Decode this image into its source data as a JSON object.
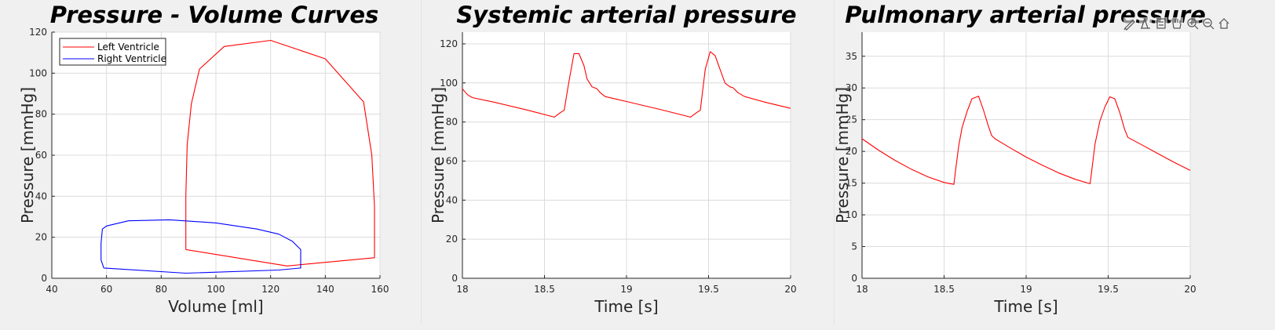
{
  "chart_data": [
    {
      "type": "line",
      "title": "Pressure - Volume Curves",
      "xlabel": "Volume [ml]",
      "ylabel": "Pressure [mmHg]",
      "xlim": [
        40,
        160
      ],
      "ylim": [
        0,
        120
      ],
      "xticks": [
        40,
        60,
        80,
        100,
        120,
        140,
        160
      ],
      "yticks": [
        0,
        20,
        40,
        60,
        80,
        100,
        120
      ],
      "grid": true,
      "legend_position": "top-left",
      "series": [
        {
          "name": "Left Ventricle",
          "color": "#ff0000",
          "x": [
            89,
            89,
            89.5,
            91,
            94,
            103,
            120,
            140,
            154,
            157,
            158,
            158,
            158,
            126,
            89
          ],
          "y": [
            14,
            40,
            65,
            85,
            102,
            113,
            116,
            107,
            86,
            60,
            35,
            20,
            10,
            6,
            14
          ]
        },
        {
          "name": "Right Ventricle",
          "color": "#0000ff",
          "x": [
            59,
            58,
            58,
            58.5,
            60,
            68,
            83,
            100,
            115,
            123,
            128,
            131,
            131,
            123,
            89,
            59
          ],
          "y": [
            5,
            9,
            17,
            24,
            25.5,
            28,
            28.5,
            27,
            24,
            21.5,
            18,
            14,
            5,
            4,
            2.5,
            5
          ]
        }
      ]
    },
    {
      "type": "line",
      "title": "Systemic arterial pressure",
      "xlabel": "Time [s]",
      "ylabel": "Pressure [mmHg]",
      "xlim": [
        18,
        20
      ],
      "ylim": [
        0,
        126
      ],
      "xticks": [
        18,
        18.5,
        19,
        19.5,
        20
      ],
      "xtick_labels": [
        "18",
        "18.5",
        "19",
        "19.5",
        "20"
      ],
      "yticks": [
        0,
        20,
        40,
        60,
        80,
        100,
        120
      ],
      "grid": true,
      "series": [
        {
          "color": "#ff0000",
          "x": [
            18.0,
            18.03,
            18.06,
            18.2,
            18.4,
            18.56,
            18.6,
            18.62,
            18.65,
            18.68,
            18.71,
            18.74,
            18.76,
            18.79,
            18.82,
            18.84,
            18.87,
            19.0,
            19.2,
            19.39,
            19.43,
            19.45,
            19.48,
            19.51,
            19.54,
            19.57,
            19.6,
            19.63,
            19.65,
            19.68,
            19.72,
            19.85,
            20.0
          ],
          "y": [
            97,
            94,
            92.5,
            90,
            86,
            82.5,
            85,
            86,
            101,
            115,
            115,
            109,
            102,
            98,
            97,
            95,
            93,
            90.5,
            86.5,
            82.5,
            85,
            86,
            107,
            116,
            114,
            107,
            100,
            98,
            97.5,
            95,
            93,
            90,
            87
          ]
        }
      ]
    },
    {
      "type": "line",
      "title": "Pulmonary arterial pressure",
      "xlabel": "Time [s]",
      "ylabel": "Pressure [mmHg]",
      "xlim": [
        18,
        20
      ],
      "ylim": [
        0,
        38.8
      ],
      "xticks": [
        18,
        18.5,
        19,
        19.5,
        20
      ],
      "xtick_labels": [
        "18",
        "18.5",
        "19",
        "19.5",
        "20"
      ],
      "yticks": [
        0,
        5,
        10,
        15,
        20,
        25,
        30,
        35
      ],
      "grid": true,
      "series": [
        {
          "color": "#ff0000",
          "x": [
            18.0,
            18.1,
            18.2,
            18.3,
            18.4,
            18.5,
            18.56,
            18.57,
            18.59,
            18.61,
            18.64,
            18.67,
            18.71,
            18.74,
            18.77,
            18.79,
            18.81,
            18.9,
            19.0,
            19.1,
            19.2,
            19.3,
            19.39,
            19.4,
            19.42,
            19.45,
            19.48,
            19.51,
            19.54,
            19.57,
            19.6,
            19.62,
            19.7,
            19.8,
            19.9,
            20.0
          ],
          "y": [
            22,
            20.2,
            18.6,
            17.2,
            16,
            15.1,
            14.8,
            17,
            21,
            23.8,
            26.3,
            28.3,
            28.7,
            26.5,
            24,
            22.5,
            22,
            20.6,
            19.1,
            17.8,
            16.6,
            15.6,
            14.9,
            17,
            21.2,
            24.8,
            27,
            28.6,
            28.3,
            26.2,
            23.5,
            22.2,
            21.1,
            19.7,
            18.3,
            17
          ]
        }
      ]
    }
  ],
  "toolbar": {
    "icons": [
      "brush-icon",
      "datatip-icon",
      "legend-icon",
      "pan-hand-icon",
      "zoom-in-icon",
      "zoom-out-icon",
      "home-icon"
    ]
  }
}
